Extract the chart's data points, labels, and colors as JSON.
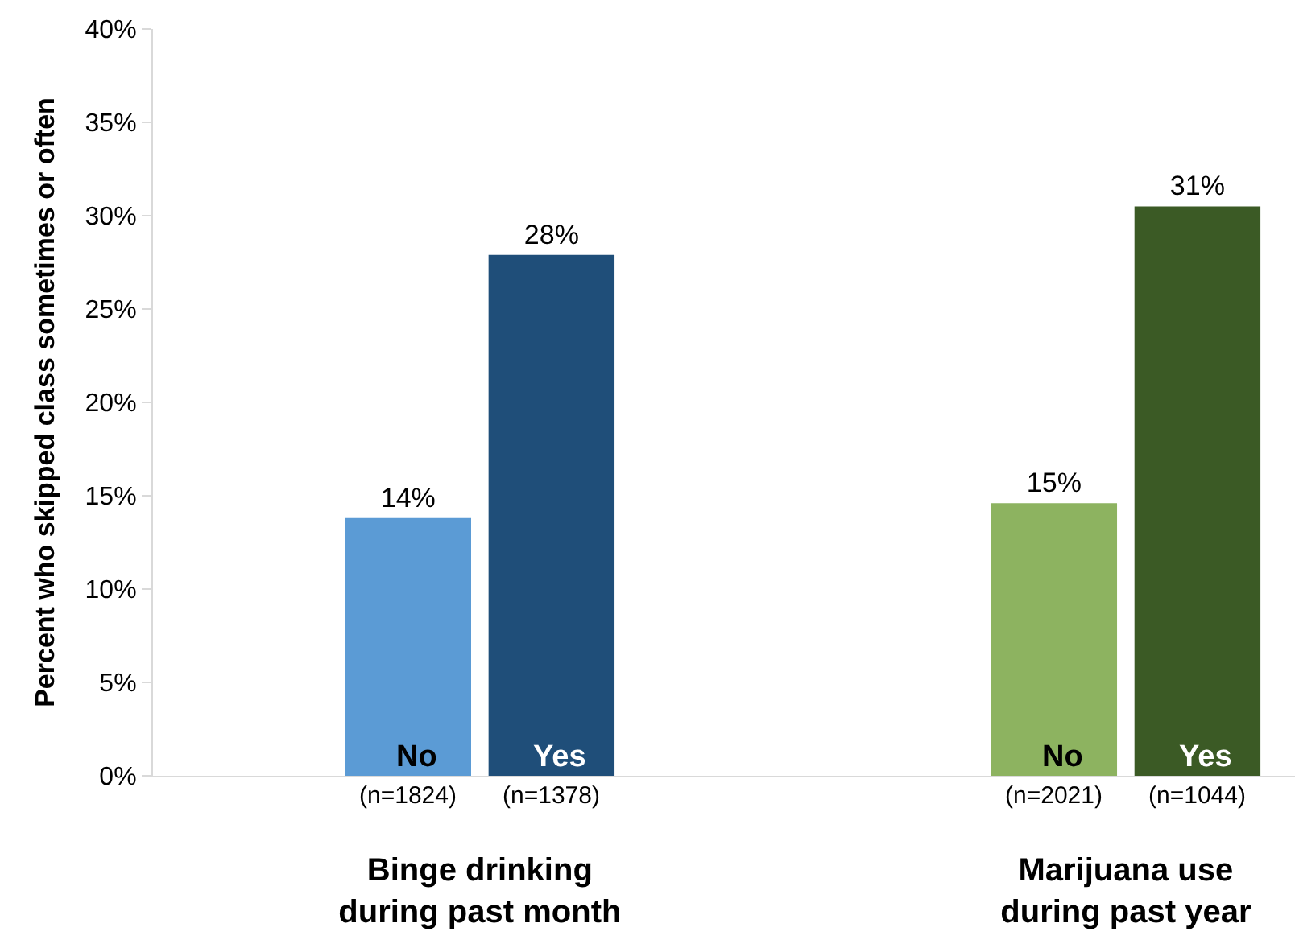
{
  "chart_data": {
    "type": "bar",
    "ylabel": "Percent who skipped class sometimes or often",
    "categories": [
      "Binge drinking\nduring past month",
      "Marijuana use\nduring past year"
    ],
    "series": [
      {
        "name": "No",
        "colors": [
          "#5b9bd5",
          "#8db360"
        ],
        "values": [
          13.8,
          14.6
        ],
        "value_labels": [
          "14%",
          "15%"
        ]
      },
      {
        "name": "Yes",
        "colors": [
          "#1f4e79",
          "#3b5a25"
        ],
        "values": [
          27.9,
          30.5
        ],
        "value_labels": [
          "28%",
          "31%"
        ]
      }
    ],
    "ylim": [
      0,
      40
    ],
    "yticks": [
      {
        "value": 0,
        "label": "0%"
      },
      {
        "value": 5,
        "label": "5%"
      },
      {
        "value": 10,
        "label": "10%"
      },
      {
        "value": 15,
        "label": "15%"
      },
      {
        "value": 20,
        "label": "20%"
      },
      {
        "value": 25,
        "label": "25%"
      },
      {
        "value": 30,
        "label": "30%"
      },
      {
        "value": 35,
        "label": "35%"
      },
      {
        "value": 40,
        "label": "40%"
      }
    ],
    "annotations": [
      "(n=1824)",
      "(n=1378)",
      "(n=2021)",
      "(n=1044)"
    ],
    "legend": false
  }
}
